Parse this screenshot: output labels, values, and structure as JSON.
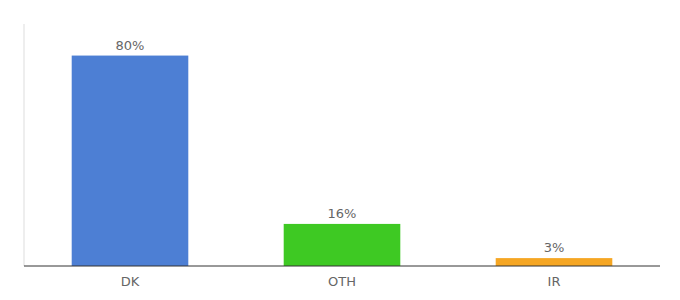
{
  "chart_data": {
    "type": "bar",
    "categories": [
      "DK",
      "OTH",
      "IR"
    ],
    "values": [
      80,
      16,
      3
    ],
    "value_labels": [
      "80%",
      "16%",
      "3%"
    ],
    "colors": [
      "#4d7fd4",
      "#3ec923",
      "#f5a623"
    ],
    "ylim": [
      0,
      92
    ],
    "data_labels": true,
    "tick_labels": "x",
    "grid": false
  }
}
